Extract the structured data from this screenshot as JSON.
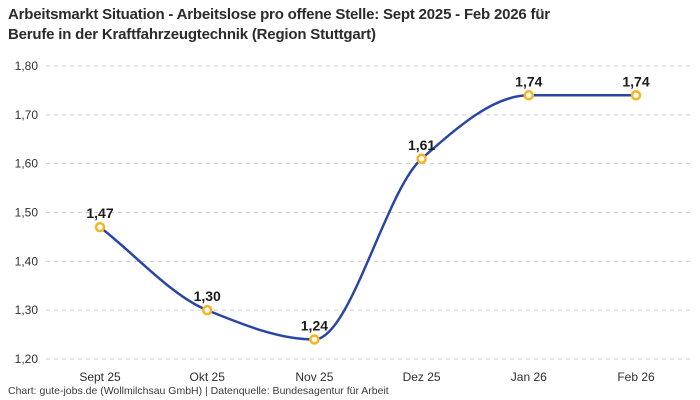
{
  "title": {
    "lines": [
      "Arbeitsmarkt Situation - Arbeitslose pro offene Stelle: Sept 2025 - Feb 2026 für",
      "Berufe in der Kraftfahrzeugtechnik (Region Stuttgart)"
    ]
  },
  "footer": {
    "text": "Chart: gute-jobs.de (Wollmilchsau GmbH) | Datenquelle: Bundesagentur für Arbeit"
  },
  "chart_data": {
    "type": "line",
    "title": "Arbeitsmarkt Situation - Arbeitslose pro offene Stelle: Sept 2025 - Feb 2026 für Berufe in der Kraftfahrzeugtechnik (Region Stuttgart)",
    "categories": [
      "Sept 25",
      "Okt 25",
      "Nov 25",
      "Dez 25",
      "Jan 26",
      "Feb 26"
    ],
    "values": [
      1.47,
      1.3,
      1.24,
      1.61,
      1.74,
      1.74
    ],
    "value_labels": [
      "1,47",
      "1,30",
      "1,24",
      "1,61",
      "1,74",
      "1,74"
    ],
    "xlabel": "",
    "ylabel": "",
    "ylim": [
      1.2,
      1.8
    ],
    "ytick_step": 0.1,
    "ytick_labels": [
      "1,20",
      "1,30",
      "1,40",
      "1,50",
      "1,60",
      "1,70",
      "1,80"
    ],
    "grid": "horizontal-dashed",
    "legend": "none",
    "smooth": true,
    "marker_style": "open-circle",
    "colors": {
      "line": "#2a46a5",
      "marker": "#f7b41e",
      "marker_fill": "#ffffff",
      "grid": "#cdcdcd",
      "title_text": "#2b2b2b",
      "tick_text": "#333333",
      "label_text": "#1c1c1c"
    }
  }
}
